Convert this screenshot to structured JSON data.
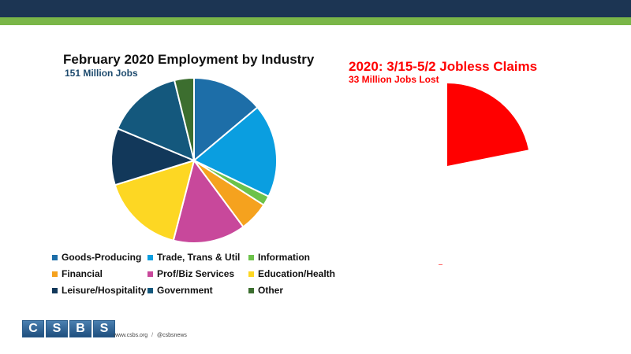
{
  "left_chart": {
    "title": "February 2020 Employment by Industry",
    "subtitle": "151 Million Jobs"
  },
  "right_chart": {
    "title": "2020: 3/15-5/2 Jobless Claims",
    "subtitle": "33 Million Jobs Lost"
  },
  "footer": {
    "site": "www.csbs.org",
    "separator": "/",
    "handle": "@csbsnews"
  },
  "logo": {
    "letters": [
      "C",
      "S",
      "B",
      "S"
    ]
  },
  "chart_data": [
    {
      "type": "pie",
      "title": "February 2020 Employment by Industry",
      "subtitle": "151 Million Jobs",
      "legend_position": "bottom",
      "slices": [
        {
          "name": "Goods-Producing",
          "value": 21.1,
          "color": "#1d6ea8"
        },
        {
          "name": "Trade, Trans & Util",
          "value": 27.8,
          "color": "#0a9ee0"
        },
        {
          "name": "Information",
          "value": 2.9,
          "color": "#6cc24a"
        },
        {
          "name": "Financial",
          "value": 8.8,
          "color": "#f5a21e"
        },
        {
          "name": "Prof/Biz Services",
          "value": 21.5,
          "color": "#c8489b"
        },
        {
          "name": "Education/Health",
          "value": 24.6,
          "color": "#fdd723"
        },
        {
          "name": "Leisure/Hospitality",
          "value": 16.9,
          "color": "#12385a"
        },
        {
          "name": "Government",
          "value": 22.6,
          "color": "#14587d"
        },
        {
          "name": "Other",
          "value": 5.8,
          "color": "#3c6e2f"
        }
      ]
    },
    {
      "type": "pie",
      "title": "2020: 3/15-5/2 Jobless Claims",
      "subtitle": "33 Million Jobs Lost",
      "total": 151,
      "slices": [
        {
          "name": "Jobs Lost",
          "value": 33,
          "color": "#ff0000"
        }
      ]
    }
  ]
}
